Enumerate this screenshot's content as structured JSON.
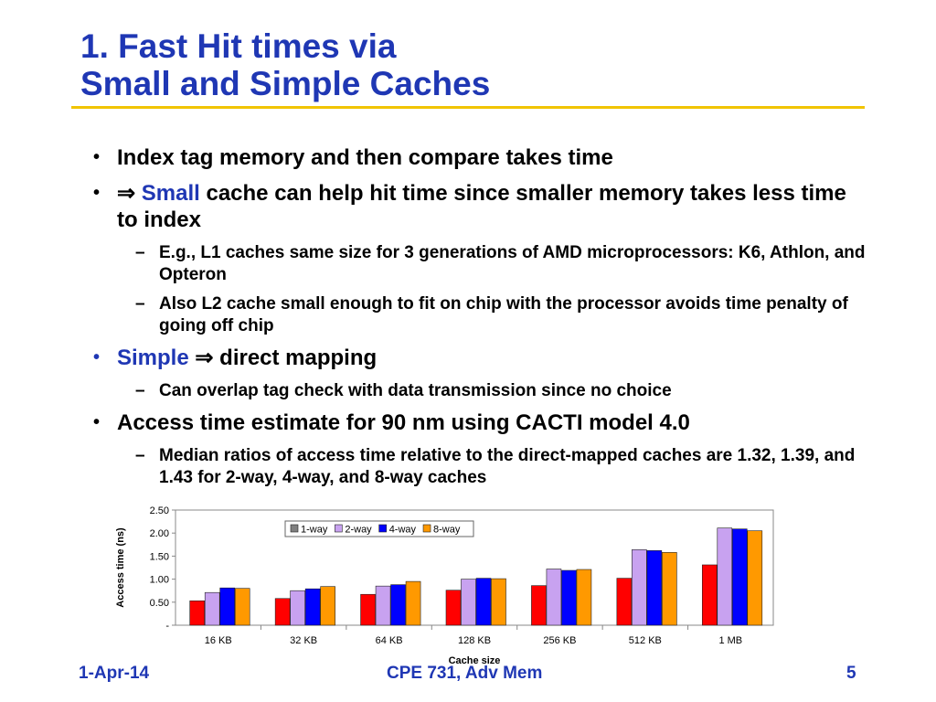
{
  "slide": {
    "title_line1": "1. Fast Hit times via",
    "title_line2": "Small and Simple Caches",
    "colors": {
      "title": "#1f37b4",
      "rule": "#f1c400",
      "accent": "#1f37b4"
    }
  },
  "bullets": {
    "b1": "Index tag memory and then compare takes time",
    "b2_arrow": "⇒",
    "b2_highlight": "Small",
    "b2_rest": " cache can help hit time since smaller memory takes less time to index",
    "b2_sub1": "E.g., L1 caches same size for 3 generations of AMD microprocessors: K6, Athlon, and Opteron",
    "b2_sub2": "Also L2 cache small enough to fit on chip with the processor avoids time penalty of going off chip",
    "b3_highlight": "Simple",
    "b3_arrow": "⇒",
    "b3_rest": " direct mapping",
    "b3_sub1": "Can overlap tag check with data transmission since no choice",
    "b4": "Access time estimate for 90 nm using CACTI model 4.0",
    "b4_sub1": "Median ratios of access time relative to the direct-mapped caches are 1.32, 1.39, and 1.43 for 2-way, 4-way, and 8-way caches",
    "dash": "–",
    "dot": "•"
  },
  "chart_data": {
    "type": "bar",
    "categories": [
      "16 KB",
      "32 KB",
      "64 KB",
      "128 KB",
      "256 KB",
      "512 KB",
      "1 MB"
    ],
    "series": [
      {
        "name": "1-way",
        "color": "#ff0000",
        "legend_color": "#808080",
        "values": [
          0.53,
          0.58,
          0.67,
          0.76,
          0.86,
          1.02,
          1.31
        ]
      },
      {
        "name": "2-way",
        "color": "#c8a2f0",
        "legend_color": "#c8a2f0",
        "values": [
          0.71,
          0.75,
          0.85,
          1.0,
          1.22,
          1.64,
          2.11
        ]
      },
      {
        "name": "4-way",
        "color": "#0000ff",
        "legend_color": "#0000ff",
        "values": [
          0.81,
          0.79,
          0.88,
          1.02,
          1.19,
          1.62,
          2.09
        ]
      },
      {
        "name": "8-way",
        "color": "#ff9900",
        "legend_color": "#ff9900",
        "values": [
          0.8,
          0.84,
          0.95,
          1.01,
          1.21,
          1.58,
          2.05
        ]
      }
    ],
    "yticks": [
      "-",
      "0.50",
      "1.00",
      "1.50",
      "2.00",
      "2.50"
    ],
    "xlabel": "Cache size",
    "ylabel": "Access time (ns)",
    "ylim": [
      0,
      2.5
    ],
    "legend_position": "top-center"
  },
  "footer": {
    "date": "1-Apr-14",
    "course": "CPE 731, Adv Mem",
    "page": "5"
  }
}
